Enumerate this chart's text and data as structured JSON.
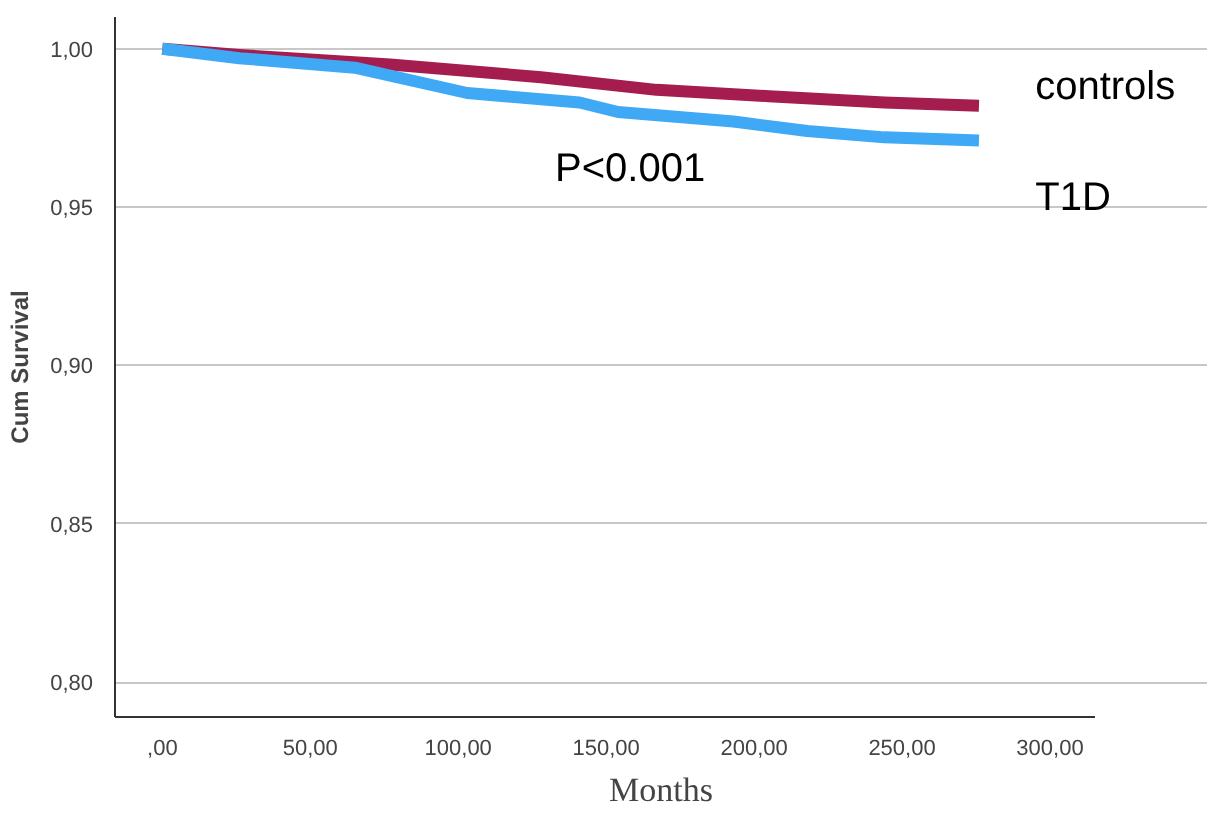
{
  "chart_data": {
    "type": "line",
    "xlabel": "Months",
    "ylabel": "Cum Survival",
    "xlim": [
      -16,
      315
    ],
    "ylim": [
      0.789,
      1.01
    ],
    "xticks": [
      {
        "value": 0,
        "label": ",00"
      },
      {
        "value": 50,
        "label": "50,00"
      },
      {
        "value": 100,
        "label": "100,00"
      },
      {
        "value": 150,
        "label": "150,00"
      },
      {
        "value": 200,
        "label": "200,00"
      },
      {
        "value": 250,
        "label": "250,00"
      },
      {
        "value": 300,
        "label": "300,00"
      }
    ],
    "yticks": [
      {
        "value": 0.8,
        "label": "0,80"
      },
      {
        "value": 0.85,
        "label": "0,85"
      },
      {
        "value": 0.9,
        "label": "0,90"
      },
      {
        "value": 0.95,
        "label": "0,95"
      },
      {
        "value": 1.0,
        "label": "1,00"
      }
    ],
    "grid": "y",
    "legend": false,
    "series": [
      {
        "name": "controls",
        "color": "#a51c4e",
        "x": [
          0,
          26,
          77,
          128,
          167,
          205,
          244,
          276
        ],
        "values": [
          1.0,
          0.998,
          0.995,
          0.991,
          0.987,
          0.985,
          0.983,
          0.982
        ]
      },
      {
        "name": "T1D",
        "color": "#3fa9f5",
        "x": [
          0,
          26,
          65,
          103,
          141,
          154,
          193,
          218,
          244,
          276
        ],
        "values": [
          1.0,
          0.997,
          0.994,
          0.986,
          0.983,
          0.98,
          0.977,
          0.974,
          0.972,
          0.971
        ]
      }
    ],
    "annotations": [
      "P<0.001"
    ]
  }
}
